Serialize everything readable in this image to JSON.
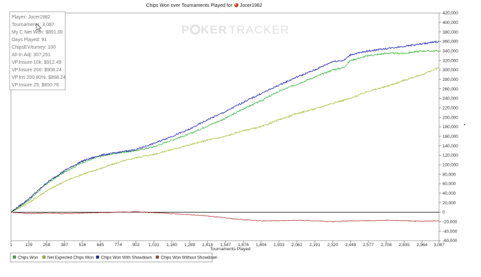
{
  "chart_data": {
    "type": "line",
    "title": "Chips Won over Tournaments Played for",
    "player_name": "Jocer1982",
    "xlabel": "Tournaments Played",
    "ylabel": "",
    "xlim": [
      1,
      3087
    ],
    "ylim": [
      -60000,
      420000
    ],
    "x_ticks": [
      "1",
      "129",
      "258",
      "387",
      "516",
      "645",
      "774",
      "902",
      "1,031",
      "1,160",
      "1,289",
      "1,418",
      "1,547",
      "1,676",
      "1,804",
      "1,933",
      "2,062",
      "2,191",
      "2,320",
      "2,449",
      "2,577",
      "2,706",
      "2,835",
      "2,964",
      "3,087"
    ],
    "y_ticks": [
      "420,000",
      "400,000",
      "380,000",
      "360,000",
      "340,000",
      "320,000",
      "300,000",
      "280,000",
      "260,000",
      "240,000",
      "220,000",
      "200,000",
      "180,000",
      "160,000",
      "140,000",
      "120,000",
      "100,000",
      "80,000",
      "60,000",
      "40,000",
      "20,000",
      "0",
      "-20,000",
      "-40,000",
      "-60,000"
    ],
    "grid": false,
    "legend_position": "bottom-left",
    "series": [
      {
        "name": "Chips Won",
        "color": "#3cb43c",
        "x": [
          1,
          129,
          258,
          387,
          516,
          645,
          774,
          902,
          1031,
          1160,
          1289,
          1418,
          1547,
          1676,
          1804,
          1933,
          2062,
          2191,
          2320,
          2400,
          2449,
          2577,
          2706,
          2835,
          2964,
          3087
        ],
        "y": [
          0,
          25000,
          60000,
          85000,
          105000,
          118000,
          125000,
          130000,
          138000,
          152000,
          165000,
          182000,
          198000,
          218000,
          235000,
          255000,
          270000,
          285000,
          300000,
          305000,
          320000,
          330000,
          335000,
          335000,
          340000,
          340000
        ]
      },
      {
        "name": "Net Expected Chips Won",
        "color": "#a8c040",
        "x": [
          1,
          129,
          258,
          387,
          516,
          645,
          774,
          902,
          1031,
          1160,
          1289,
          1418,
          1547,
          1676,
          1804,
          1933,
          2062,
          2191,
          2320,
          2449,
          2577,
          2706,
          2835,
          2964,
          3087
        ],
        "y": [
          0,
          20000,
          45000,
          65000,
          80000,
          92000,
          105000,
          115000,
          122000,
          132000,
          142000,
          152000,
          160000,
          172000,
          180000,
          195000,
          208000,
          218000,
          230000,
          240000,
          255000,
          265000,
          278000,
          290000,
          305000
        ]
      },
      {
        "name": "Chips Won With Showdown",
        "color": "#2020b0",
        "x": [
          1,
          129,
          258,
          387,
          516,
          645,
          774,
          902,
          1031,
          1160,
          1289,
          1418,
          1547,
          1676,
          1804,
          1933,
          2062,
          2191,
          2320,
          2400,
          2449,
          2577,
          2706,
          2835,
          2964,
          3087
        ],
        "y": [
          0,
          28000,
          62000,
          88000,
          108000,
          120000,
          126000,
          132000,
          145000,
          160000,
          175000,
          195000,
          212000,
          232000,
          250000,
          268000,
          285000,
          300000,
          318000,
          320000,
          332000,
          340000,
          345000,
          350000,
          355000,
          360000
        ]
      },
      {
        "name": "Chips Won Without Showdown",
        "color": "#b04040",
        "x": [
          1,
          129,
          258,
          387,
          516,
          645,
          774,
          902,
          1031,
          1160,
          1289,
          1418,
          1547,
          1676,
          1804,
          1933,
          2062,
          2191,
          2320,
          2449,
          2577,
          2706,
          2835,
          2964,
          3087
        ],
        "y": [
          0,
          -3000,
          -2000,
          -3000,
          -2000,
          -1000,
          0,
          1000,
          -1000,
          -3000,
          -5000,
          -8000,
          -12000,
          -16000,
          -18000,
          -18000,
          -17000,
          -18000,
          -20000,
          -18000,
          -18000,
          -17000,
          -18000,
          -19000,
          -18000
        ]
      }
    ]
  },
  "stats_box": [
    "Player: Jocer1982",
    "Tournaments: 3,087",
    "My C Net Won: $891.00",
    "Days Played: 91",
    "ChipsEV/turney: 100",
    "All-In Adj: 307,251",
    "VP.Insure 10k: $912.49",
    "VP.Insure 200: $908.24",
    "VP.Ins 200 80%: $898.24",
    "VP.Insure 25: $850.76"
  ],
  "watermark": {
    "brand_left": "P",
    "brand_mid": "KER",
    "brand_right": "TRACKER"
  },
  "colors": {
    "chips_won": "#3cb43c",
    "net_expected": "#a8c040",
    "showdown": "#2020b0",
    "non_showdown": "#b04040",
    "title_icon": "#d23a1a"
  }
}
